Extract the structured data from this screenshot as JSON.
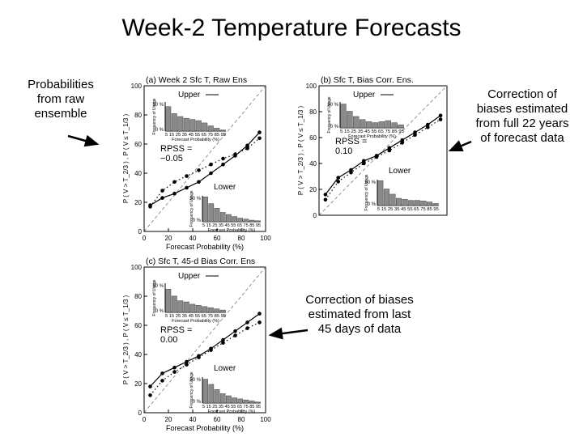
{
  "title": "Week-2 Temperature Forecasts",
  "annotations": {
    "raw": [
      "Probabilities",
      "from raw",
      "ensemble"
    ],
    "full": [
      "Correction of",
      "biases estimated",
      "from full 22 years",
      "of forecast data"
    ],
    "last45": [
      "Correction of biases",
      "estimated from last",
      "45 days of data"
    ]
  },
  "chart_data": [
    {
      "type": "line",
      "title": "(a) Week 2 Sfc T, Raw Ens",
      "xlabel": "Forecast Probability (%)",
      "ylabel": "P ( V > T_2/3 ) , P ( V ≤ T_1/3 )",
      "xlim": [
        0,
        100
      ],
      "ylim": [
        0,
        100
      ],
      "xticks": [
        "0",
        "20",
        "40",
        "60",
        "80",
        "100"
      ],
      "yticks": [
        "0",
        "20",
        "40",
        "60",
        "80",
        "100"
      ],
      "diagonal": true,
      "labels": {
        "upper": "Upper",
        "lower": "Lower",
        "rpss": "RPSS =",
        "rpss_value": "−0.05"
      },
      "series": [
        {
          "name": "Upper",
          "style": "dotted",
          "x": [
            5,
            15,
            25,
            35,
            45,
            55,
            65,
            75,
            85,
            95
          ],
          "y": [
            17,
            28,
            34,
            38,
            42,
            46,
            50,
            53,
            57,
            64
          ]
        },
        {
          "name": "Lower",
          "style": "solid",
          "x": [
            5,
            15,
            25,
            35,
            45,
            55,
            65,
            75,
            85,
            95
          ],
          "y": [
            18,
            23,
            26,
            30,
            34,
            40,
            46,
            52,
            59,
            68
          ]
        }
      ],
      "inset_upper": {
        "title": "Frequency of Usage",
        "ticks": "5 15 25 35 45 55 65 75 85 95",
        "xlabel": "Forecast Probability (%)",
        "ymax": "50 %",
        "ymin": "0 %",
        "values": [
          42,
          30,
          25,
          22,
          20,
          18,
          14,
          9,
          5,
          2
        ]
      },
      "inset_lower": {
        "title": "Frequency of Usage",
        "ticks": "5 15 25 35 45 55 65 75 85 95",
        "xlabel": "Forecast Probability (%)",
        "ymax": "50 %",
        "ymin": "0 %",
        "values": [
          48,
          35,
          26,
          18,
          14,
          10,
          7,
          5,
          3,
          2
        ]
      }
    },
    {
      "type": "line",
      "title": "(b) Sfc T, Bias Corr. Ens.",
      "xlabel": "",
      "ylabel": "P ( V > T_2/3 ) , P ( V ≤ T_1/3 )",
      "xlim": [
        0,
        100
      ],
      "ylim": [
        0,
        100
      ],
      "xticks": [],
      "yticks": [
        "0",
        "20",
        "40",
        "60",
        "80",
        "100"
      ],
      "diagonal": true,
      "labels": {
        "upper": "Upper",
        "lower": "Lower",
        "rpss": "RPSS =",
        "rpss_value": "0.10"
      },
      "series": [
        {
          "name": "Upper",
          "style": "dotted",
          "x": [
            5,
            15,
            25,
            35,
            45,
            55,
            65,
            75,
            85,
            95
          ],
          "y": [
            12,
            26,
            33,
            40,
            45,
            50,
            56,
            62,
            68,
            74
          ]
        },
        {
          "name": "Lower",
          "style": "solid",
          "x": [
            5,
            15,
            25,
            35,
            45,
            55,
            65,
            75,
            85,
            95
          ],
          "y": [
            16,
            29,
            35,
            42,
            46,
            52,
            58,
            64,
            70,
            77
          ]
        }
      ],
      "inset_upper": {
        "title": "Frequency of Usage",
        "ticks": "5 15 25 35 45 55 65 75 85 95",
        "xlabel": "Forecast Probability (%)",
        "ymax": "50 %",
        "ymin": "0 %",
        "values": [
          46,
          32,
          22,
          16,
          12,
          10,
          12,
          14,
          10,
          6
        ]
      },
      "inset_lower": {
        "title": "Frequency of Usage",
        "ticks": "5 15 25 35 45 55 65 75 85 95",
        "xlabel": "",
        "ymax": "50 %",
        "ymin": "0 %",
        "values": [
          48,
          32,
          22,
          14,
          12,
          10,
          10,
          9,
          7,
          4
        ]
      }
    },
    {
      "type": "line",
      "title": "(c) Sfc T, 45-d Bias Corr. Ens",
      "xlabel": "Forecast Probability (%)",
      "ylabel": "P ( V > T_2/3 ) , P ( V ≤ T_1/3 )",
      "xlim": [
        0,
        100
      ],
      "ylim": [
        0,
        100
      ],
      "xticks": [
        "0",
        "20",
        "40",
        "60",
        "80",
        "100"
      ],
      "yticks": [
        "0",
        "20",
        "40",
        "60",
        "80",
        "100"
      ],
      "diagonal": true,
      "labels": {
        "upper": "Upper",
        "lower": "Lower",
        "rpss": "RPSS =",
        "rpss_value": "0.00"
      },
      "series": [
        {
          "name": "Upper",
          "style": "dotted",
          "x": [
            5,
            15,
            25,
            35,
            45,
            55,
            65,
            75,
            85,
            95
          ],
          "y": [
            12,
            22,
            28,
            33,
            38,
            43,
            48,
            53,
            58,
            62
          ]
        },
        {
          "name": "Lower",
          "style": "solid",
          "x": [
            5,
            15,
            25,
            35,
            45,
            55,
            65,
            75,
            85,
            95
          ],
          "y": [
            18,
            27,
            31,
            35,
            39,
            44,
            50,
            56,
            62,
            68
          ]
        }
      ],
      "inset_upper": {
        "title": "Frequency of Usage",
        "ticks": "5 15 25 35 45 55 65 75 85 95",
        "xlabel": "Forecast Probability (%)",
        "ymax": "50 %",
        "ymin": "0 %",
        "values": [
          40,
          28,
          20,
          18,
          14,
          12,
          10,
          8,
          6,
          4
        ]
      },
      "inset_lower": {
        "title": "Frequency of Usage",
        "ticks": "5 15 25 35 45 55 65 75 85 95",
        "xlabel": "Forecast Probability (%)",
        "ymax": "50 %",
        "ymin": "0 %",
        "values": [
          46,
          36,
          26,
          18,
          14,
          10,
          8,
          6,
          4,
          2
        ]
      }
    }
  ]
}
